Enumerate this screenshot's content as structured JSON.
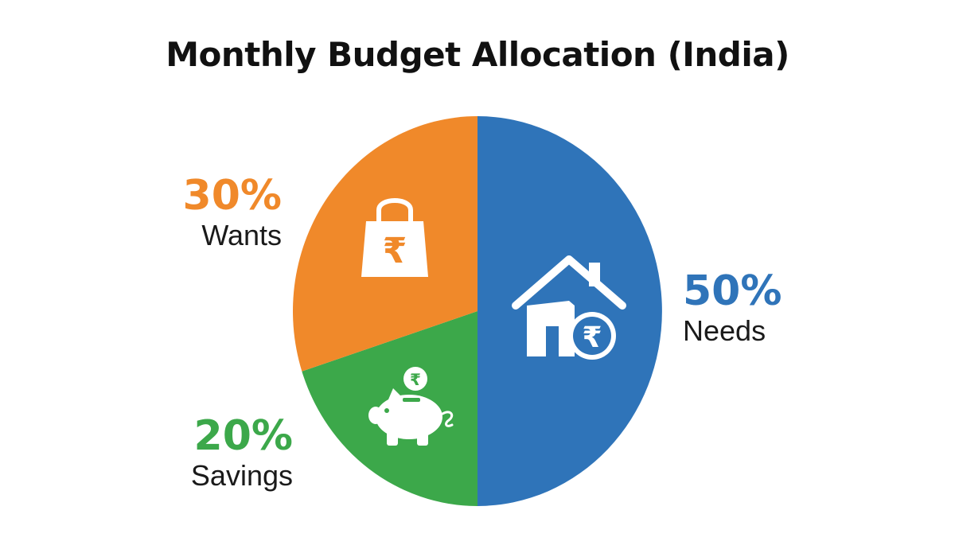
{
  "chart_data": {
    "type": "pie",
    "title": "Monthly Budget Allocation (India)",
    "slices": [
      {
        "label": "Needs",
        "value": 50,
        "value_label": "50%",
        "color": "#2f74b9",
        "icon": "house-rupee-icon"
      },
      {
        "label": "Savings",
        "value": 20,
        "value_label": "20%",
        "color": "#3ca84a",
        "icon": "piggy-bank-rupee-icon"
      },
      {
        "label": "Wants",
        "value": 30,
        "value_label": "30%",
        "color": "#f0892a",
        "icon": "shopping-bag-rupee-icon"
      }
    ],
    "start_angle": "12 o'clock",
    "direction": "clockwise",
    "legend": "none",
    "labels_position": "outside"
  },
  "icons": {
    "rupee_symbol": "₹"
  }
}
